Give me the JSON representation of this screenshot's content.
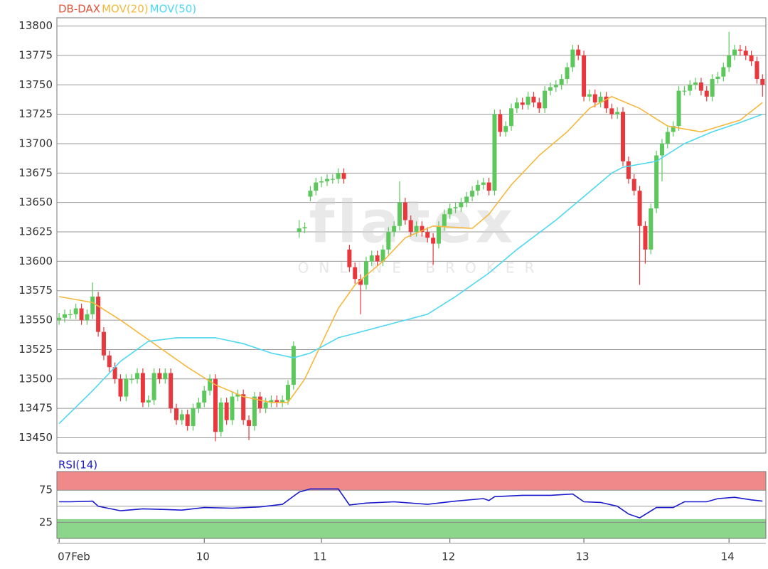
{
  "chart_data": [
    {
      "type": "candlestick",
      "watermark": {
        "logo": "flatex",
        "tagline": "ONLINE BROKER"
      },
      "xlim": [
        -0.4,
        126.6
      ],
      "ylim": [
        13437,
        13807
      ],
      "yticks": [
        13450,
        13475,
        13500,
        13525,
        13550,
        13575,
        13600,
        13625,
        13650,
        13675,
        13700,
        13725,
        13750,
        13775,
        13800
      ],
      "grid": true,
      "up_color": "#5cc85c",
      "down_color": "#e8383d",
      "series": [
        {
          "name": "DB-DAX",
          "type": "candlestick",
          "color": "#e0543a",
          "open": [
            13550,
            13552,
            13555,
            13555,
            13560,
            13550,
            13555,
            13570,
            13540,
            13520,
            13510,
            13500,
            13485,
            13500,
            13500,
            13505,
            13480,
            13482,
            13505,
            13500,
            13505,
            13475,
            13465,
            13470,
            13460,
            13475,
            13480,
            13490,
            13500,
            13455,
            13480,
            13465,
            13485,
            13487,
            13465,
            13460,
            13485,
            13475,
            13480,
            13482,
            13480,
            13482,
            13495,
            13625,
            13628,
            13655,
            13660,
            13667,
            13668,
            13670,
            13670,
            13675,
            13610,
            13595,
            13585,
            13580,
            13600,
            13605,
            13600,
            13610,
            13625,
            13630,
            13650,
            13635,
            13625,
            13630,
            13625,
            13620,
            13615,
            13630,
            13640,
            13645,
            13646,
            13650,
            13655,
            13660,
            13665,
            13667,
            13660,
            13725,
            13710,
            13715,
            13730,
            13735,
            13733,
            13740,
            13735,
            13730,
            13745,
            13748,
            13750,
            13755,
            13765,
            13780,
            13775,
            13740,
            13742,
            13735,
            13740,
            13730,
            13725,
            13727,
            13685,
            13670,
            13660,
            13630,
            13610,
            13645,
            13690,
            13700,
            13710,
            13715,
            13745,
            13745,
            13750,
            13752,
            13745,
            13740,
            13755,
            13757,
            13765,
            13775,
            13780,
            13779,
            13775,
            13770,
            13755
          ],
          "high": [
            13556,
            13559,
            13559,
            13564,
            13564,
            13559,
            13582,
            13574,
            13544,
            13524,
            13514,
            13504,
            13504,
            13504,
            13509,
            13509,
            13486,
            13509,
            13509,
            13509,
            13509,
            13479,
            13474,
            13474,
            13479,
            13484,
            13494,
            13504,
            13504,
            13484,
            13484,
            13489,
            13491,
            13491,
            13469,
            13489,
            13489,
            13484,
            13486,
            13486,
            13486,
            13499,
            13532,
            13635,
            13633,
            13664,
            13671,
            13672,
            13674,
            13674,
            13679,
            13679,
            13614,
            13599,
            13589,
            13604,
            13609,
            13609,
            13614,
            13629,
            13634,
            13668,
            13654,
            13639,
            13634,
            13634,
            13629,
            13624,
            13634,
            13644,
            13649,
            13650,
            13654,
            13659,
            13664,
            13669,
            13671,
            13671,
            13729,
            13729,
            13719,
            13734,
            13739,
            13739,
            13744,
            13744,
            13739,
            13749,
            13752,
            13754,
            13759,
            13769,
            13784,
            13784,
            13779,
            13746,
            13746,
            13744,
            13744,
            13734,
            13731,
            13731,
            13689,
            13674,
            13664,
            13634,
            13649,
            13694,
            13704,
            13714,
            13719,
            13749,
            13749,
            13754,
            13756,
            13756,
            13749,
            13759,
            13761,
            13769,
            13795,
            13784,
            13784,
            13783,
            13779,
            13774,
            13759
          ],
          "low": [
            13546,
            13548,
            13551,
            13551,
            13546,
            13546,
            13551,
            13536,
            13516,
            13506,
            13496,
            13481,
            13481,
            13496,
            13496,
            13476,
            13476,
            13478,
            13496,
            13496,
            13471,
            13461,
            13461,
            13456,
            13456,
            13471,
            13476,
            13486,
            13447,
            13451,
            13461,
            13461,
            13481,
            13461,
            13448,
            13456,
            13471,
            13471,
            13476,
            13476,
            13476,
            13478,
            13491,
            13620,
            13624,
            13651,
            13656,
            13663,
            13664,
            13666,
            13666,
            13666,
            13591,
            13581,
            13555,
            13576,
            13596,
            13596,
            13596,
            13606,
            13621,
            13626,
            13631,
            13621,
            13621,
            13621,
            13616,
            13597,
            13611,
            13626,
            13636,
            13641,
            13642,
            13646,
            13651,
            13656,
            13661,
            13656,
            13656,
            13706,
            13706,
            13711,
            13726,
            13729,
            13729,
            13731,
            13726,
            13726,
            13741,
            13744,
            13746,
            13751,
            13761,
            13771,
            13736,
            13736,
            13731,
            13731,
            13726,
            13721,
            13721,
            13681,
            13666,
            13656,
            13580,
            13598,
            13606,
            13641,
            13668,
            13696,
            13706,
            13711,
            13741,
            13741,
            13746,
            13741,
            13736,
            13736,
            13751,
            13753,
            13761,
            13771,
            13775,
            13771,
            13766,
            13751,
            13740
          ],
          "close": [
            13552,
            13555,
            13555,
            13560,
            13550,
            13555,
            13570,
            13540,
            13520,
            13510,
            13500,
            13485,
            13500,
            13500,
            13505,
            13480,
            13482,
            13505,
            13500,
            13505,
            13475,
            13465,
            13470,
            13460,
            13475,
            13480,
            13490,
            13500,
            13455,
            13480,
            13465,
            13485,
            13487,
            13465,
            13460,
            13485,
            13475,
            13480,
            13482,
            13480,
            13482,
            13495,
            13528,
            13628,
            13629,
            13660,
            13667,
            13668,
            13670,
            13670,
            13675,
            13670,
            13595,
            13585,
            13580,
            13600,
            13605,
            13600,
            13610,
            13625,
            13630,
            13650,
            13635,
            13625,
            13630,
            13625,
            13620,
            13615,
            13630,
            13640,
            13645,
            13646,
            13650,
            13655,
            13660,
            13665,
            13667,
            13660,
            13725,
            13710,
            13715,
            13730,
            13735,
            13733,
            13740,
            13735,
            13730,
            13745,
            13748,
            13750,
            13755,
            13765,
            13780,
            13775,
            13740,
            13742,
            13735,
            13740,
            13730,
            13725,
            13727,
            13685,
            13670,
            13660,
            13630,
            13610,
            13645,
            13690,
            13700,
            13710,
            13715,
            13745,
            13745,
            13750,
            13752,
            13745,
            13740,
            13755,
            13757,
            13765,
            13775,
            13780,
            13779,
            13775,
            13770,
            13755,
            13750
          ]
        },
        {
          "name": "MOV(20)",
          "type": "line",
          "color": "#f5b83d",
          "x": [
            0,
            6,
            11,
            17,
            23,
            28,
            33,
            38,
            41,
            44,
            47,
            50,
            53,
            58,
            62,
            67,
            74,
            77,
            81,
            86,
            91,
            95,
            99,
            104,
            109,
            115,
            122,
            126
          ],
          "values": [
            13570,
            13565,
            13550,
            13530,
            13510,
            13495,
            13485,
            13480,
            13480,
            13500,
            13530,
            13560,
            13580,
            13600,
            13620,
            13630,
            13628,
            13640,
            13665,
            13690,
            13710,
            13730,
            13740,
            13730,
            13715,
            13710,
            13720,
            13735
          ]
        },
        {
          "name": "MOV(50)",
          "type": "line",
          "color": "#4dd8f0",
          "x": [
            0,
            6,
            11,
            16,
            21,
            28,
            33,
            38,
            42,
            45,
            50,
            58,
            66,
            71,
            77,
            82,
            89,
            94,
            99,
            101,
            107,
            112,
            117,
            122,
            126
          ],
          "values": [
            13462,
            13490,
            13515,
            13532,
            13535,
            13535,
            13530,
            13522,
            13518,
            13522,
            13535,
            13545,
            13555,
            13570,
            13590,
            13610,
            13635,
            13655,
            13675,
            13680,
            13685,
            13700,
            13710,
            13718,
            13725
          ]
        }
      ]
    },
    {
      "type": "line",
      "xlim": [
        -0.4,
        126.6
      ],
      "xticks": [
        {
          "value": 0,
          "label": "07Feb"
        },
        {
          "value": 26,
          "label": "10"
        },
        {
          "value": 47,
          "label": "11"
        },
        {
          "value": 70,
          "label": "12"
        },
        {
          "value": 94,
          "label": "13"
        },
        {
          "value": 120,
          "label": "14"
        }
      ],
      "ylim": [
        0,
        104
      ],
      "yticks": [
        25,
        75
      ],
      "midline": 50,
      "overbought": 75,
      "oversold": 30,
      "overbought_color": "#f08a8a",
      "oversold_color": "#8cd68c",
      "series": [
        {
          "name": "RSI(14)",
          "color": "#1a1acd",
          "x": [
            0,
            2,
            6,
            7,
            11,
            15,
            19,
            22,
            26,
            31,
            36,
            40,
            43,
            45,
            50,
            52,
            55,
            60,
            66,
            71,
            76,
            77,
            78,
            83,
            88,
            92,
            94,
            97,
            100,
            102,
            104,
            107,
            110,
            112,
            116,
            118,
            121,
            124,
            126
          ],
          "values": [
            57,
            57,
            58,
            50,
            43,
            46,
            45,
            44,
            48,
            47,
            49,
            53,
            72,
            77,
            77,
            52,
            55,
            57,
            53,
            58,
            62,
            59,
            65,
            67,
            67,
            69,
            57,
            56,
            50,
            38,
            32,
            48,
            48,
            57,
            57,
            62,
            64,
            60,
            58
          ]
        }
      ]
    }
  ]
}
